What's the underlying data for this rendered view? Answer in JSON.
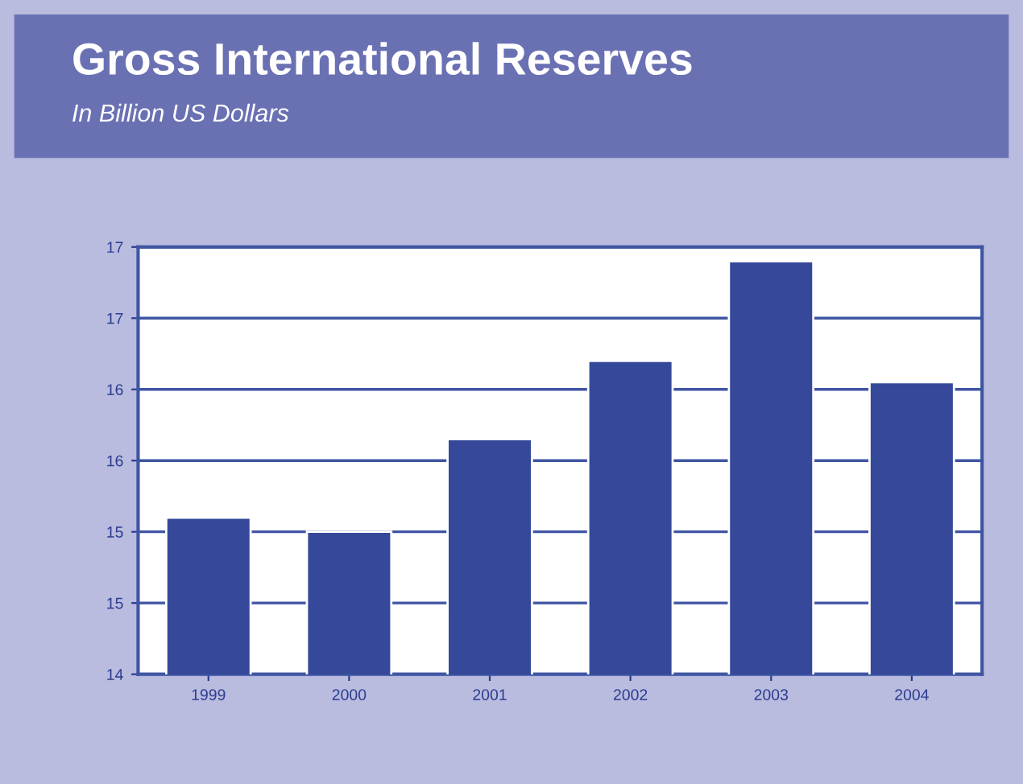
{
  "chart_data": {
    "type": "bar",
    "title": "Gross International Reserves",
    "subtitle": "In Billion US Dollars",
    "categories": [
      "1999",
      "2000",
      "2001",
      "2002",
      "2003",
      "2004"
    ],
    "values": [
      15.1,
      15.0,
      15.65,
      16.2,
      16.9,
      16.05
    ],
    "color": "#35489a",
    "ylim": [
      14,
      17
    ],
    "yticks": [
      14,
      {
        "value": 14.5,
        "label": "15"
      },
      15,
      {
        "value": 15.5,
        "label": "16"
      },
      16,
      {
        "value": 16.5,
        "label": "17"
      },
      17
    ],
    "grid": "y",
    "legend": false
  }
}
